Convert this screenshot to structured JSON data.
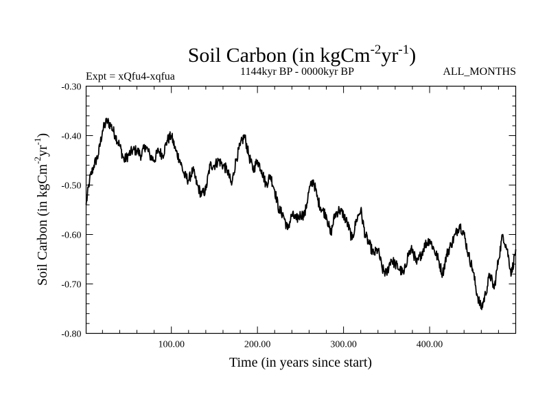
{
  "chart_data": {
    "type": "line",
    "title": {
      "main": "Soil Carbon (in kgCm",
      "sup1": "-2",
      "mid": "yr",
      "sup2": "-1",
      "close": ")"
    },
    "subtitle_left": "Expt = xQfu4-xqfua",
    "subtitle_center": "1144kyr BP - 0000kyr BP",
    "subtitle_right": "ALL_MONTHS",
    "xlabel": "Time (in years since start)",
    "ylabel": {
      "main": "Soil Carbon (in kgCm",
      "sup1": "-2",
      "mid": "yr",
      "sup2": "-1",
      "close": ")"
    },
    "xlim": [
      1,
      500
    ],
    "ylim": [
      -0.8,
      -0.3
    ],
    "xticks": [
      100,
      200,
      300,
      400
    ],
    "xtick_labels": [
      "100.00",
      "200.00",
      "300.00",
      "400.00"
    ],
    "yticks": [
      -0.3,
      -0.4,
      -0.5,
      -0.6,
      -0.7,
      -0.8
    ],
    "ytick_labels": [
      "-0.30",
      "-0.40",
      "-0.50",
      "-0.60",
      "-0.70",
      "-0.80"
    ],
    "grid": false,
    "series": [
      {
        "name": "Soil Carbon",
        "color": "#000000",
        "x": [
          1,
          5,
          10,
          15,
          20,
          25,
          30,
          35,
          40,
          45,
          50,
          55,
          60,
          65,
          70,
          75,
          80,
          85,
          90,
          95,
          100,
          105,
          110,
          115,
          120,
          125,
          130,
          135,
          140,
          145,
          150,
          155,
          160,
          165,
          170,
          175,
          180,
          185,
          190,
          195,
          200,
          205,
          210,
          215,
          220,
          225,
          230,
          235,
          240,
          245,
          250,
          255,
          260,
          265,
          270,
          275,
          280,
          285,
          290,
          295,
          300,
          305,
          310,
          315,
          320,
          325,
          330,
          335,
          340,
          345,
          350,
          355,
          360,
          365,
          370,
          375,
          380,
          385,
          390,
          395,
          400,
          405,
          410,
          415,
          420,
          425,
          430,
          435,
          440,
          445,
          450,
          455,
          460,
          465,
          470,
          475,
          480,
          485,
          490,
          495,
          500
        ],
        "values": [
          -0.54,
          -0.49,
          -0.46,
          -0.44,
          -0.39,
          -0.37,
          -0.38,
          -0.4,
          -0.42,
          -0.45,
          -0.44,
          -0.43,
          -0.43,
          -0.44,
          -0.42,
          -0.44,
          -0.45,
          -0.43,
          -0.44,
          -0.41,
          -0.4,
          -0.43,
          -0.45,
          -0.48,
          -0.49,
          -0.47,
          -0.5,
          -0.52,
          -0.51,
          -0.46,
          -0.46,
          -0.45,
          -0.46,
          -0.47,
          -0.5,
          -0.45,
          -0.42,
          -0.4,
          -0.44,
          -0.47,
          -0.45,
          -0.47,
          -0.5,
          -0.48,
          -0.51,
          -0.55,
          -0.56,
          -0.59,
          -0.56,
          -0.57,
          -0.56,
          -0.56,
          -0.51,
          -0.49,
          -0.53,
          -0.55,
          -0.56,
          -0.6,
          -0.56,
          -0.55,
          -0.56,
          -0.58,
          -0.61,
          -0.57,
          -0.55,
          -0.6,
          -0.62,
          -0.64,
          -0.63,
          -0.67,
          -0.68,
          -0.65,
          -0.66,
          -0.67,
          -0.68,
          -0.64,
          -0.63,
          -0.66,
          -0.64,
          -0.62,
          -0.61,
          -0.63,
          -0.65,
          -0.68,
          -0.64,
          -0.62,
          -0.6,
          -0.58,
          -0.6,
          -0.64,
          -0.67,
          -0.72,
          -0.75,
          -0.72,
          -0.68,
          -0.71,
          -0.65,
          -0.6,
          -0.63,
          -0.68,
          -0.63
        ]
      }
    ]
  }
}
